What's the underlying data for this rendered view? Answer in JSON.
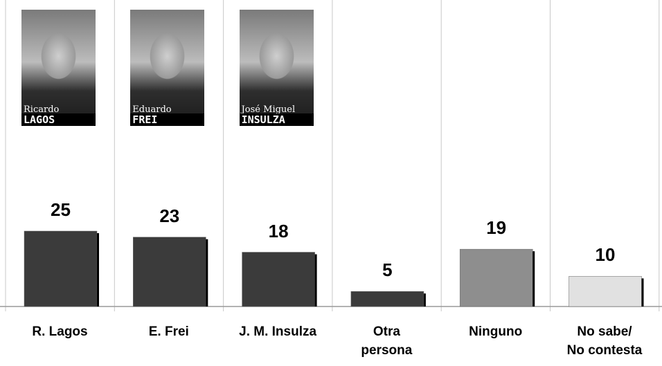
{
  "chart_data": {
    "type": "bar",
    "categories": [
      "R. Lagos",
      "E. Frei",
      "J. M. Insulza",
      "Otra\npersona",
      "Ninguno",
      "No sabe/\nNo contesta"
    ],
    "values": [
      25,
      23,
      18,
      5,
      19,
      10
    ],
    "colors": [
      "#3b3b3b",
      "#3b3b3b",
      "#3b3b3b",
      "#3b3b3b",
      "#8e8e8e",
      "#e1e1e1"
    ],
    "photos": [
      {
        "first": "Ricardo",
        "last": "LAGOS"
      },
      {
        "first": "Eduardo",
        "last": "FREI"
      },
      {
        "first": "José Miguel",
        "last": "INSULZA"
      }
    ]
  }
}
